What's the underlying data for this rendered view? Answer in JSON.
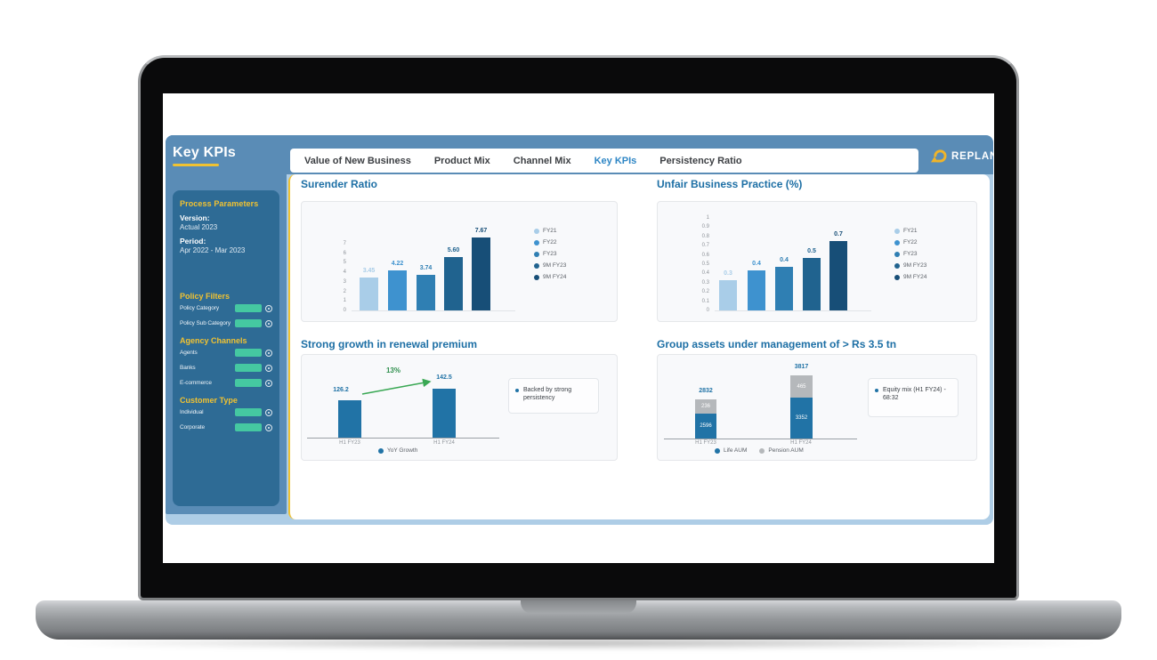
{
  "app": {
    "title": "Key KPIs",
    "brand": "REPLAN"
  },
  "nav": {
    "items": [
      {
        "label": "Value of New Business",
        "active": false
      },
      {
        "label": "Product Mix",
        "active": false
      },
      {
        "label": "Channel Mix",
        "active": false
      },
      {
        "label": "Key KPIs",
        "active": true
      },
      {
        "label": "Persistency Ratio",
        "active": false
      }
    ]
  },
  "sidebar": {
    "title": "Key KPIs",
    "process_parameters": {
      "heading": "Process Parameters",
      "version_label": "Version:",
      "version_value": "Actual 2023",
      "period_label": "Period:",
      "period_value": "Apr 2022 - Mar 2023"
    },
    "filter_sections": [
      {
        "heading": "Policy Filters",
        "items": [
          "Policy Category",
          "Policy Sub Category"
        ]
      },
      {
        "heading": "Agency Channels",
        "items": [
          "Agents",
          "Banks",
          "E-commerce"
        ]
      },
      {
        "heading": "Customer Type",
        "items": [
          "Individual",
          "Corporate"
        ]
      }
    ]
  },
  "colors": {
    "header_blue": "#5a8cb6",
    "sidebar_panel_blue": "#2e6b95",
    "dashboard_bg_blue": "#aecde6",
    "accent_yellow": "#f0c232",
    "active_nav_blue": "#2e86c5",
    "chart_title_blue": "#1d6fa5",
    "filter_pill_teal": "#45c8a1",
    "growth_green": "#3aa854",
    "pension_gray": "#b5b8bb",
    "bar_blues": [
      "#a9cde8",
      "#3e92cf",
      "#2f7fb3",
      "#20638f",
      "#174e77"
    ]
  },
  "chart_data": [
    {
      "type": "bar",
      "title": "Surender Ratio",
      "categories": [
        "FY21",
        "FY22",
        "FY23",
        "9M FY23",
        "9M FY24"
      ],
      "values": [
        3.45,
        4.22,
        3.74,
        5.6,
        7.67
      ],
      "value_labels": [
        "3.45",
        "4.22",
        "3.74",
        "5.60",
        "7.67"
      ],
      "bar_colors": [
        "#a9cde8",
        "#3e92cf",
        "#2f7fb3",
        "#20638f",
        "#174e77"
      ],
      "yticks": [
        "7",
        "6",
        "5",
        "4",
        "3",
        "2",
        "1",
        "0"
      ],
      "ylim": [
        0,
        8
      ],
      "legend": [
        "FY21",
        "FY22",
        "FY23",
        "9M FY23",
        "9M FY24"
      ],
      "legend_position": "right",
      "grid": false,
      "xlabel": "",
      "ylabel": ""
    },
    {
      "type": "bar",
      "title": "Unfair Business Practice (%)",
      "categories": [
        "FY21",
        "FY22",
        "FY23",
        "9M FY23",
        "9M FY24"
      ],
      "values": [
        0.3,
        0.4,
        0.4,
        0.5,
        0.7
      ],
      "value_labels": [
        "0.3",
        "0.4",
        "0.4",
        "0.5",
        "0.7"
      ],
      "bar_heights_est": [
        0.33,
        0.43,
        0.47,
        0.57,
        0.75
      ],
      "bar_colors": [
        "#a9cde8",
        "#3e92cf",
        "#2f7fb3",
        "#20638f",
        "#174e77"
      ],
      "yticks": [
        "1",
        "0.9",
        "0.8",
        "0.7",
        "0.6",
        "0.5",
        "0.4",
        "0.3",
        "0.2",
        "0.1",
        "0"
      ],
      "ylim": [
        0,
        1
      ],
      "legend": [
        "FY21",
        "FY22",
        "FY23",
        "9M FY23",
        "9M FY24"
      ],
      "legend_position": "right",
      "grid": false,
      "xlabel": "",
      "ylabel": ""
    },
    {
      "type": "bar",
      "title": "Strong growth in renewal premium",
      "categories": [
        "H1 FY23",
        "H1 FY24"
      ],
      "values": [
        126.2,
        142.5
      ],
      "value_labels": [
        "126.2",
        "142.5"
      ],
      "growth_label": "13%",
      "bar_color": "#2173a6",
      "arrow_color": "#3aa854",
      "legend": [
        "YoY Growth"
      ],
      "legend_position": "bottom",
      "callout": "Backed by strong persistency",
      "xlabel": "",
      "ylabel": ""
    },
    {
      "type": "stacked-bar",
      "title": "Group assets under management of > Rs 3.5 tn",
      "categories": [
        "H1 FY23",
        "H1 FY24"
      ],
      "series": [
        {
          "name": "Life AUM",
          "values": [
            2596,
            3352
          ],
          "color": "#2173a6"
        },
        {
          "name": "Pension AUM",
          "values": [
            236,
            465
          ],
          "color": "#b5b8bb"
        }
      ],
      "totals": [
        2832,
        3817
      ],
      "legend": [
        "Life AUM",
        "Pension AUM"
      ],
      "legend_position": "bottom",
      "callout": "Equity mix (H1 FY24) - 68:32",
      "xlabel": "",
      "ylabel": ""
    }
  ]
}
